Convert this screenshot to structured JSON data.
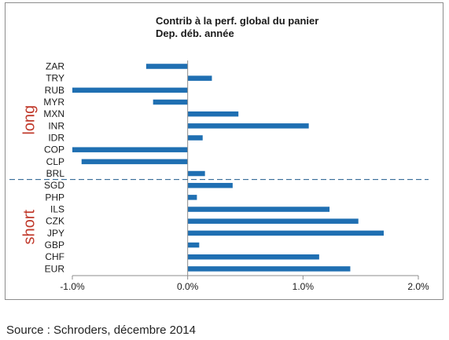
{
  "chart_data": {
    "type": "bar",
    "orientation": "horizontal",
    "title": "Contrib à la perf. global du panier",
    "subtitle": "Dep. déb. année",
    "categories": [
      "ZAR",
      "TRY",
      "RUB",
      "MYR",
      "MXN",
      "INR",
      "IDR",
      "COP",
      "CLP",
      "BRL",
      "SGD",
      "PHP",
      "ILS",
      "CZK",
      "JPY",
      "GBP",
      "CHF",
      "EUR"
    ],
    "values": [
      -0.36,
      0.21,
      -1.0,
      -0.3,
      0.44,
      1.05,
      0.13,
      -1.0,
      -0.92,
      0.15,
      0.39,
      0.08,
      1.23,
      1.48,
      1.7,
      0.1,
      1.14,
      1.41
    ],
    "xlim": [
      -1.0,
      2.0
    ],
    "xticks": [
      -1.0,
      0.0,
      1.0,
      2.0
    ],
    "xtick_labels": [
      "-1.0%",
      "0.0%",
      "1.0%",
      "2.0%"
    ],
    "groups": [
      {
        "label": "long",
        "categories": [
          "ZAR",
          "TRY",
          "RUB",
          "MYR",
          "MXN",
          "INR",
          "IDR",
          "COP",
          "CLP",
          "BRL"
        ]
      },
      {
        "label": "short",
        "categories": [
          "SGD",
          "PHP",
          "ILS",
          "CZK",
          "JPY",
          "GBP",
          "CHF",
          "EUR"
        ]
      }
    ],
    "grid": false,
    "legend": "none"
  },
  "colors": {
    "bar": "#1f6fb2",
    "group_label": "#c0392b",
    "divider": "#1f5a8c",
    "axis": "#8c8c8c",
    "frame": "#8c8c8c"
  },
  "source_note": "Source : Schroders, décembre 2014"
}
